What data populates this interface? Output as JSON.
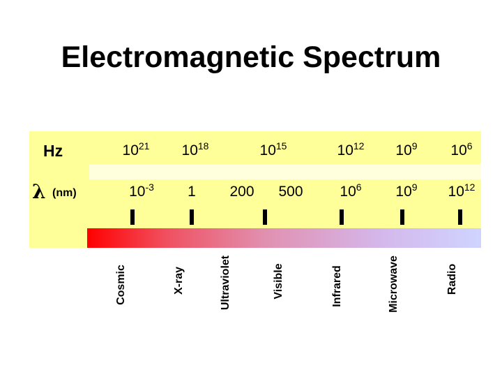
{
  "title": "Electromagnetic Spectrum",
  "rows": [
    {
      "label": "Hz",
      "values": [
        {
          "base": "10",
          "exp": "21"
        },
        {
          "base": "10",
          "exp": "18"
        },
        {
          "base": "10",
          "exp": "15"
        },
        {
          "base": "10",
          "exp": "12"
        },
        {
          "base": "10",
          "exp": "9"
        },
        {
          "base": "10",
          "exp": "6"
        }
      ]
    },
    {
      "symbol": "λ",
      "unit": "(nm)",
      "values": [
        {
          "base": "10",
          "exp": "-3"
        },
        {
          "base": "1"
        },
        {
          "base": "200"
        },
        {
          "base": "500"
        },
        {
          "base": "10",
          "exp": "6"
        },
        {
          "base": "10",
          "exp": "9"
        },
        {
          "base": "10",
          "exp": "12"
        }
      ]
    }
  ],
  "bands": [
    "Cosmic",
    "X-ray",
    "Ultraviolet",
    "Visible",
    "Infrared",
    "Microwave",
    "Radio"
  ]
}
